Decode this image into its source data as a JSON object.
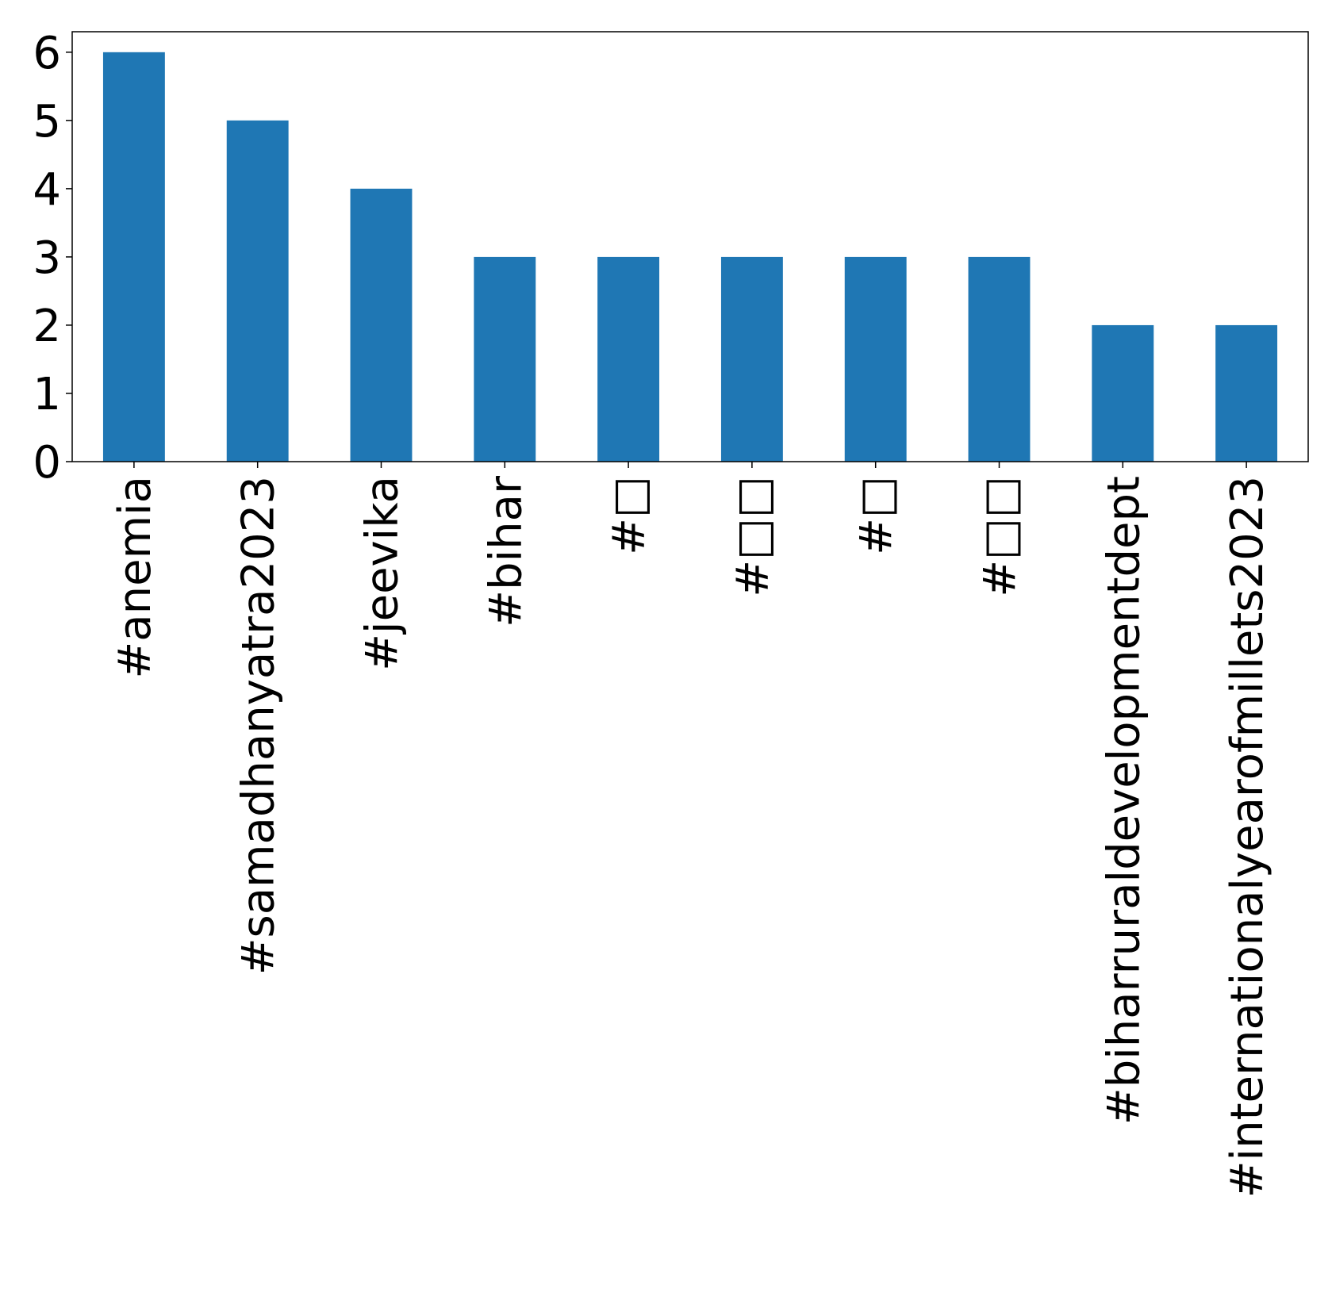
{
  "chart_data": {
    "type": "bar",
    "categories": [
      "#anemia",
      "#samadhanyatra2023",
      "#jeevika",
      "#bihar",
      "#□",
      "#□□",
      "#□",
      "#□□",
      "#biharruraldevelopmentdept",
      "#internationalyearofmillets2023"
    ],
    "values": [
      6,
      5,
      4,
      3,
      3,
      3,
      3,
      3,
      2,
      2
    ],
    "yticks": [
      "0",
      "1",
      "2",
      "3",
      "4",
      "5",
      "6"
    ],
    "ylim": [
      0,
      6.3
    ],
    "grid": false,
    "bar_color": "#1f77b4",
    "title": "",
    "xlabel": "",
    "ylabel": ""
  }
}
